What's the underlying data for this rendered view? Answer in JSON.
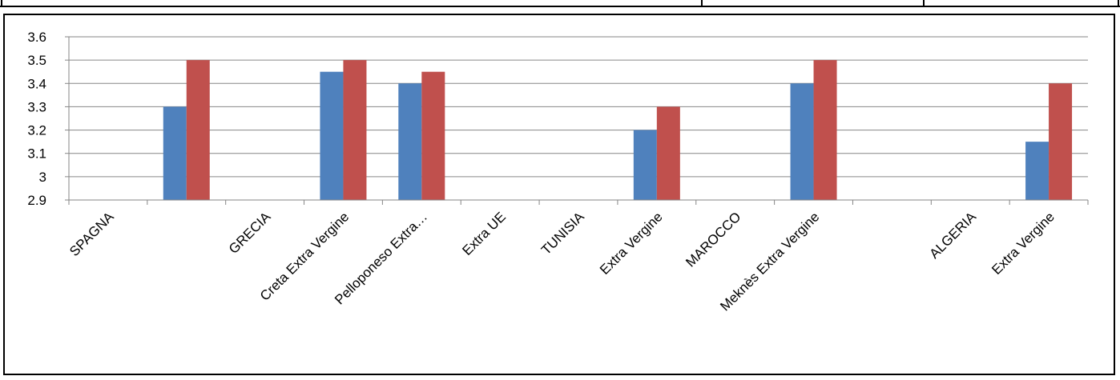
{
  "chart_data": {
    "type": "bar",
    "categories": [
      "SPAGNA",
      "",
      "GRECIA",
      "Creta Extra Vergine",
      "Pelloponeso Extra…",
      "Extra UE",
      "TUNISIA",
      "Extra Vergine",
      "MAROCCO",
      "Meknès Extra Vergine",
      "",
      "ALGERIA",
      "Extra Vergine"
    ],
    "series": [
      {
        "color": "#4F81BD",
        "values": [
          null,
          3.3,
          null,
          3.45,
          3.4,
          null,
          null,
          3.2,
          null,
          3.4,
          null,
          null,
          3.15
        ]
      },
      {
        "color": "#C0504D",
        "values": [
          null,
          3.5,
          null,
          3.5,
          3.45,
          null,
          null,
          3.3,
          null,
          3.5,
          null,
          null,
          3.4
        ]
      }
    ],
    "yticks": [
      "2.9",
      "3",
      "3.1",
      "3.2",
      "3.3",
      "3.4",
      "3.5",
      "3.6"
    ],
    "ylim": [
      2.9,
      3.6
    ],
    "grid": true,
    "legend": "none",
    "title": "",
    "xlabel": "",
    "ylabel": ""
  }
}
